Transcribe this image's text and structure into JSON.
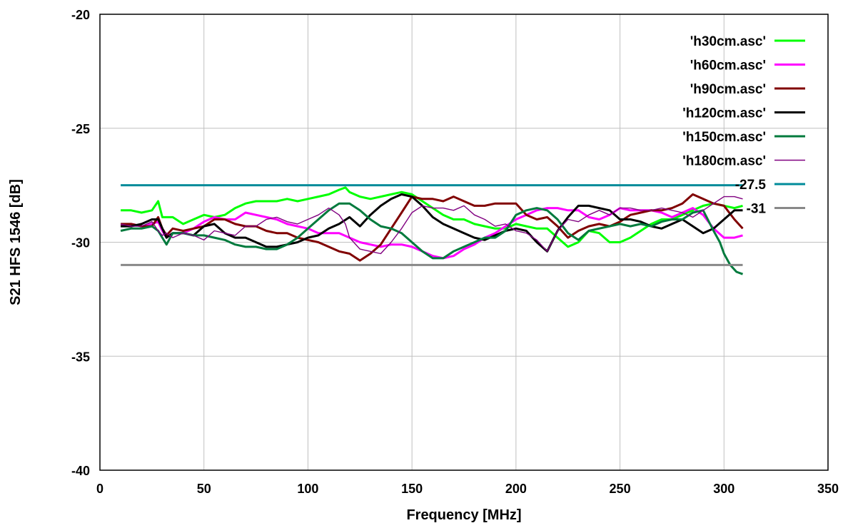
{
  "chart_data": {
    "type": "line",
    "title": "",
    "xlabel": "Frequency [MHz]",
    "ylabel": "S21 HFS 1546 [dB]",
    "xlim": [
      0,
      350
    ],
    "ylim": [
      -40,
      -20
    ],
    "xticks": [
      0,
      50,
      100,
      150,
      200,
      250,
      300,
      350
    ],
    "yticks": [
      -40,
      -35,
      -30,
      -25,
      -20
    ],
    "grid": true,
    "legend_position": "top-right",
    "series": [
      {
        "name": "'h30cm.asc'",
        "color": "#00ff00",
        "x": [
          10,
          15,
          20,
          25,
          28,
          30,
          32,
          35,
          40,
          45,
          50,
          55,
          60,
          65,
          70,
          75,
          80,
          85,
          90,
          95,
          100,
          105,
          110,
          115,
          118,
          120,
          125,
          130,
          135,
          140,
          145,
          150,
          155,
          160,
          165,
          170,
          175,
          180,
          185,
          190,
          195,
          200,
          205,
          210,
          215,
          220,
          225,
          230,
          235,
          240,
          245,
          250,
          255,
          260,
          265,
          270,
          275,
          280,
          285,
          290,
          295,
          300,
          305,
          309
        ],
        "y": [
          -28.6,
          -28.6,
          -28.7,
          -28.6,
          -28.2,
          -28.9,
          -28.9,
          -28.9,
          -29.2,
          -29.0,
          -28.8,
          -28.9,
          -28.8,
          -28.5,
          -28.3,
          -28.2,
          -28.2,
          -28.2,
          -28.1,
          -28.2,
          -28.1,
          -28.0,
          -27.9,
          -27.7,
          -27.6,
          -27.8,
          -28.0,
          -28.1,
          -28.0,
          -27.9,
          -27.8,
          -27.9,
          -28.2,
          -28.5,
          -28.8,
          -29.0,
          -29.0,
          -29.2,
          -29.3,
          -29.4,
          -29.4,
          -29.2,
          -29.3,
          -29.4,
          -29.4,
          -29.8,
          -30.2,
          -30.0,
          -29.5,
          -29.6,
          -30.0,
          -30.0,
          -29.8,
          -29.5,
          -29.2,
          -29.0,
          -29.0,
          -28.8,
          -28.6,
          -28.4,
          -28.3,
          -28.4,
          -28.5,
          -28.4
        ]
      },
      {
        "name": "'h60cm.asc'",
        "color": "#ff00ff",
        "x": [
          10,
          15,
          20,
          25,
          28,
          30,
          32,
          35,
          40,
          45,
          50,
          55,
          60,
          65,
          70,
          75,
          80,
          85,
          90,
          95,
          100,
          105,
          110,
          115,
          120,
          125,
          130,
          135,
          140,
          145,
          150,
          155,
          160,
          165,
          170,
          175,
          180,
          185,
          190,
          195,
          200,
          205,
          210,
          215,
          220,
          225,
          230,
          235,
          240,
          245,
          250,
          255,
          260,
          265,
          270,
          275,
          280,
          285,
          290,
          295,
          300,
          305,
          309
        ],
        "y": [
          -29.3,
          -29.2,
          -29.3,
          -29.2,
          -29.1,
          -29.5,
          -29.8,
          -29.6,
          -29.6,
          -29.4,
          -29.1,
          -28.9,
          -29.0,
          -29.0,
          -28.7,
          -28.8,
          -28.9,
          -29.0,
          -29.2,
          -29.3,
          -29.4,
          -29.6,
          -29.6,
          -29.6,
          -29.8,
          -30.0,
          -30.1,
          -30.2,
          -30.1,
          -30.1,
          -30.2,
          -30.4,
          -30.6,
          -30.7,
          -30.6,
          -30.3,
          -30.1,
          -29.8,
          -29.6,
          -29.3,
          -29.0,
          -28.8,
          -28.6,
          -28.5,
          -28.5,
          -28.6,
          -28.6,
          -28.9,
          -29.0,
          -28.8,
          -28.5,
          -28.6,
          -28.6,
          -28.6,
          -28.7,
          -28.9,
          -28.7,
          -28.5,
          -28.8,
          -29.4,
          -29.8,
          -29.8,
          -29.7
        ]
      },
      {
        "name": "'h90cm.asc'",
        "color": "#800000",
        "x": [
          10,
          15,
          20,
          25,
          28,
          30,
          32,
          35,
          40,
          45,
          50,
          55,
          60,
          65,
          70,
          75,
          80,
          85,
          90,
          95,
          100,
          105,
          110,
          115,
          120,
          125,
          130,
          135,
          140,
          145,
          150,
          155,
          160,
          165,
          170,
          175,
          180,
          185,
          190,
          195,
          200,
          205,
          210,
          215,
          220,
          225,
          230,
          235,
          240,
          245,
          250,
          255,
          260,
          265,
          270,
          275,
          280,
          285,
          290,
          295,
          300,
          305,
          309
        ],
        "y": [
          -29.2,
          -29.2,
          -29.3,
          -29.3,
          -28.9,
          -29.4,
          -29.7,
          -29.4,
          -29.5,
          -29.4,
          -29.3,
          -29.0,
          -29.0,
          -29.2,
          -29.3,
          -29.3,
          -29.5,
          -29.6,
          -29.6,
          -29.8,
          -29.9,
          -30.0,
          -30.2,
          -30.4,
          -30.5,
          -30.8,
          -30.5,
          -30.1,
          -29.4,
          -28.7,
          -28.0,
          -28.1,
          -28.1,
          -28.2,
          -28.0,
          -28.2,
          -28.4,
          -28.4,
          -28.3,
          -28.3,
          -28.3,
          -28.8,
          -29.0,
          -28.9,
          -29.3,
          -29.8,
          -29.5,
          -29.3,
          -29.2,
          -29.3,
          -29.1,
          -28.8,
          -28.7,
          -28.6,
          -28.6,
          -28.5,
          -28.3,
          -27.9,
          -28.1,
          -28.3,
          -28.4,
          -29.0,
          -29.4
        ]
      },
      {
        "name": "'h120cm.asc'",
        "color": "#000000",
        "x": [
          10,
          15,
          20,
          25,
          28,
          30,
          32,
          35,
          40,
          45,
          50,
          55,
          60,
          65,
          70,
          75,
          80,
          85,
          90,
          95,
          100,
          105,
          110,
          115,
          120,
          125,
          130,
          135,
          140,
          145,
          150,
          155,
          160,
          165,
          170,
          175,
          180,
          185,
          190,
          195,
          200,
          205,
          210,
          215,
          220,
          225,
          230,
          235,
          240,
          245,
          250,
          255,
          260,
          265,
          270,
          275,
          280,
          285,
          290,
          295,
          300,
          305,
          309
        ],
        "y": [
          -29.3,
          -29.3,
          -29.2,
          -29.0,
          -29.0,
          -29.4,
          -29.8,
          -29.6,
          -29.6,
          -29.7,
          -29.3,
          -29.2,
          -29.6,
          -29.8,
          -29.8,
          -30.0,
          -30.2,
          -30.2,
          -30.1,
          -30.0,
          -29.8,
          -29.7,
          -29.4,
          -29.2,
          -28.9,
          -29.3,
          -28.8,
          -28.4,
          -28.1,
          -27.9,
          -28.0,
          -28.4,
          -28.9,
          -29.2,
          -29.4,
          -29.6,
          -29.8,
          -29.9,
          -29.7,
          -29.5,
          -29.4,
          -29.5,
          -30.0,
          -30.4,
          -29.5,
          -28.9,
          -28.4,
          -28.4,
          -28.5,
          -28.6,
          -29.0,
          -29.0,
          -29.1,
          -29.3,
          -29.4,
          -29.2,
          -29.0,
          -29.3,
          -29.6,
          -29.4,
          -29.0,
          -28.6,
          -28.6
        ]
      },
      {
        "name": "'h150cm.asc'",
        "color": "#007a3d",
        "x": [
          10,
          15,
          20,
          25,
          28,
          30,
          32,
          35,
          40,
          45,
          50,
          55,
          60,
          65,
          70,
          75,
          80,
          85,
          90,
          95,
          100,
          105,
          110,
          115,
          120,
          125,
          130,
          135,
          140,
          145,
          150,
          155,
          160,
          165,
          170,
          175,
          180,
          185,
          190,
          195,
          200,
          205,
          210,
          215,
          220,
          225,
          230,
          235,
          240,
          245,
          250,
          255,
          260,
          265,
          270,
          275,
          280,
          285,
          290,
          295,
          298,
          300,
          303,
          306,
          309
        ],
        "y": [
          -29.5,
          -29.4,
          -29.4,
          -29.3,
          -29.5,
          -29.8,
          -30.1,
          -29.6,
          -29.6,
          -29.7,
          -29.7,
          -29.8,
          -29.9,
          -30.1,
          -30.2,
          -30.2,
          -30.3,
          -30.3,
          -30.1,
          -29.8,
          -29.4,
          -29.0,
          -28.6,
          -28.3,
          -28.3,
          -28.6,
          -29.0,
          -29.3,
          -29.4,
          -29.6,
          -30.0,
          -30.4,
          -30.7,
          -30.7,
          -30.4,
          -30.2,
          -30.0,
          -29.8,
          -29.8,
          -29.5,
          -28.8,
          -28.6,
          -28.5,
          -28.6,
          -29.0,
          -29.6,
          -29.9,
          -29.5,
          -29.4,
          -29.3,
          -29.2,
          -29.3,
          -29.2,
          -29.3,
          -29.1,
          -29.0,
          -29.0,
          -28.7,
          -28.6,
          -29.5,
          -30.0,
          -30.5,
          -31.0,
          -31.3,
          -31.4
        ]
      },
      {
        "name": "'h180cm.asc'",
        "color": "#800080",
        "width": 1.4,
        "x": [
          10,
          15,
          20,
          25,
          28,
          30,
          32,
          35,
          40,
          45,
          50,
          55,
          60,
          65,
          70,
          75,
          80,
          85,
          90,
          95,
          100,
          105,
          110,
          115,
          118,
          120,
          125,
          130,
          135,
          140,
          145,
          150,
          155,
          160,
          165,
          170,
          175,
          180,
          185,
          190,
          195,
          200,
          205,
          210,
          215,
          220,
          225,
          230,
          235,
          240,
          245,
          250,
          255,
          260,
          265,
          270,
          275,
          280,
          285,
          290,
          295,
          300,
          305,
          309
        ],
        "y": [
          -29.2,
          -29.3,
          -29.3,
          -29.1,
          -29.5,
          -29.7,
          -29.6,
          -29.8,
          -29.6,
          -29.7,
          -29.9,
          -29.5,
          -29.6,
          -29.7,
          -29.3,
          -29.3,
          -29.0,
          -28.9,
          -29.1,
          -29.2,
          -29.0,
          -28.8,
          -28.5,
          -28.8,
          -29.2,
          -29.8,
          -30.3,
          -30.4,
          -30.5,
          -30.0,
          -29.4,
          -28.7,
          -28.4,
          -28.5,
          -28.5,
          -28.6,
          -28.4,
          -28.8,
          -29.0,
          -29.3,
          -29.2,
          -29.5,
          -29.6,
          -29.9,
          -30.4,
          -29.5,
          -29.0,
          -29.1,
          -28.8,
          -28.6,
          -28.8,
          -28.5,
          -28.5,
          -28.6,
          -28.6,
          -28.5,
          -28.6,
          -28.7,
          -28.9,
          -28.6,
          -28.3,
          -28.0,
          -28.0,
          -28.1
        ]
      },
      {
        "name": "-27.5",
        "color": "#008b9a",
        "x": [
          10,
          309
        ],
        "y": [
          -27.5,
          -27.5
        ]
      },
      {
        "name": "-31",
        "color": "#888888",
        "x": [
          10,
          309
        ],
        "y": [
          -31,
          -31
        ]
      }
    ]
  }
}
